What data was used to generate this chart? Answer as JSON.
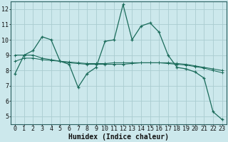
{
  "xlabel": "Humidex (Indice chaleur)",
  "background_color": "#cce8ec",
  "grid_color": "#aaccd0",
  "line_color": "#1a6b5a",
  "xlim": [
    -0.5,
    23.5
  ],
  "ylim": [
    4.5,
    12.5
  ],
  "yticks": [
    5,
    6,
    7,
    8,
    9,
    10,
    11,
    12
  ],
  "xticks": [
    0,
    1,
    2,
    3,
    4,
    5,
    6,
    7,
    8,
    9,
    10,
    11,
    12,
    13,
    14,
    15,
    16,
    17,
    18,
    19,
    20,
    21,
    22,
    23
  ],
  "series1_x": [
    0,
    1,
    2,
    3,
    4,
    5,
    6,
    7,
    8,
    9,
    10,
    11,
    12,
    13,
    14,
    15,
    16,
    17,
    18,
    19,
    20,
    21,
    22,
    23
  ],
  "series1_y": [
    7.8,
    9.0,
    9.3,
    10.2,
    10.0,
    8.6,
    8.4,
    6.9,
    7.8,
    8.2,
    9.9,
    10.0,
    12.3,
    10.0,
    10.9,
    11.1,
    10.5,
    9.0,
    8.2,
    8.1,
    7.9,
    7.5,
    5.3,
    4.8
  ],
  "series2_x": [
    0,
    1,
    2,
    3,
    4,
    5,
    6,
    7,
    8,
    9,
    10,
    11,
    12,
    13,
    14,
    15,
    16,
    17,
    18,
    19,
    20,
    21,
    22,
    23
  ],
  "series2_y": [
    9.0,
    9.0,
    9.0,
    8.8,
    8.7,
    8.6,
    8.5,
    8.45,
    8.4,
    8.4,
    8.4,
    8.4,
    8.4,
    8.45,
    8.5,
    8.5,
    8.5,
    8.5,
    8.45,
    8.4,
    8.3,
    8.2,
    8.1,
    8.0
  ],
  "series3_x": [
    0,
    1,
    2,
    3,
    4,
    5,
    6,
    7,
    8,
    9,
    10,
    11,
    12,
    13,
    14,
    15,
    16,
    17,
    18,
    19,
    20,
    21,
    22,
    23
  ],
  "series3_y": [
    8.6,
    8.8,
    8.8,
    8.7,
    8.65,
    8.6,
    8.55,
    8.5,
    8.45,
    8.45,
    8.45,
    8.5,
    8.5,
    8.5,
    8.5,
    8.5,
    8.5,
    8.45,
    8.4,
    8.35,
    8.25,
    8.15,
    8.0,
    7.85
  ],
  "tick_fontsize": 6,
  "xlabel_fontsize": 7
}
